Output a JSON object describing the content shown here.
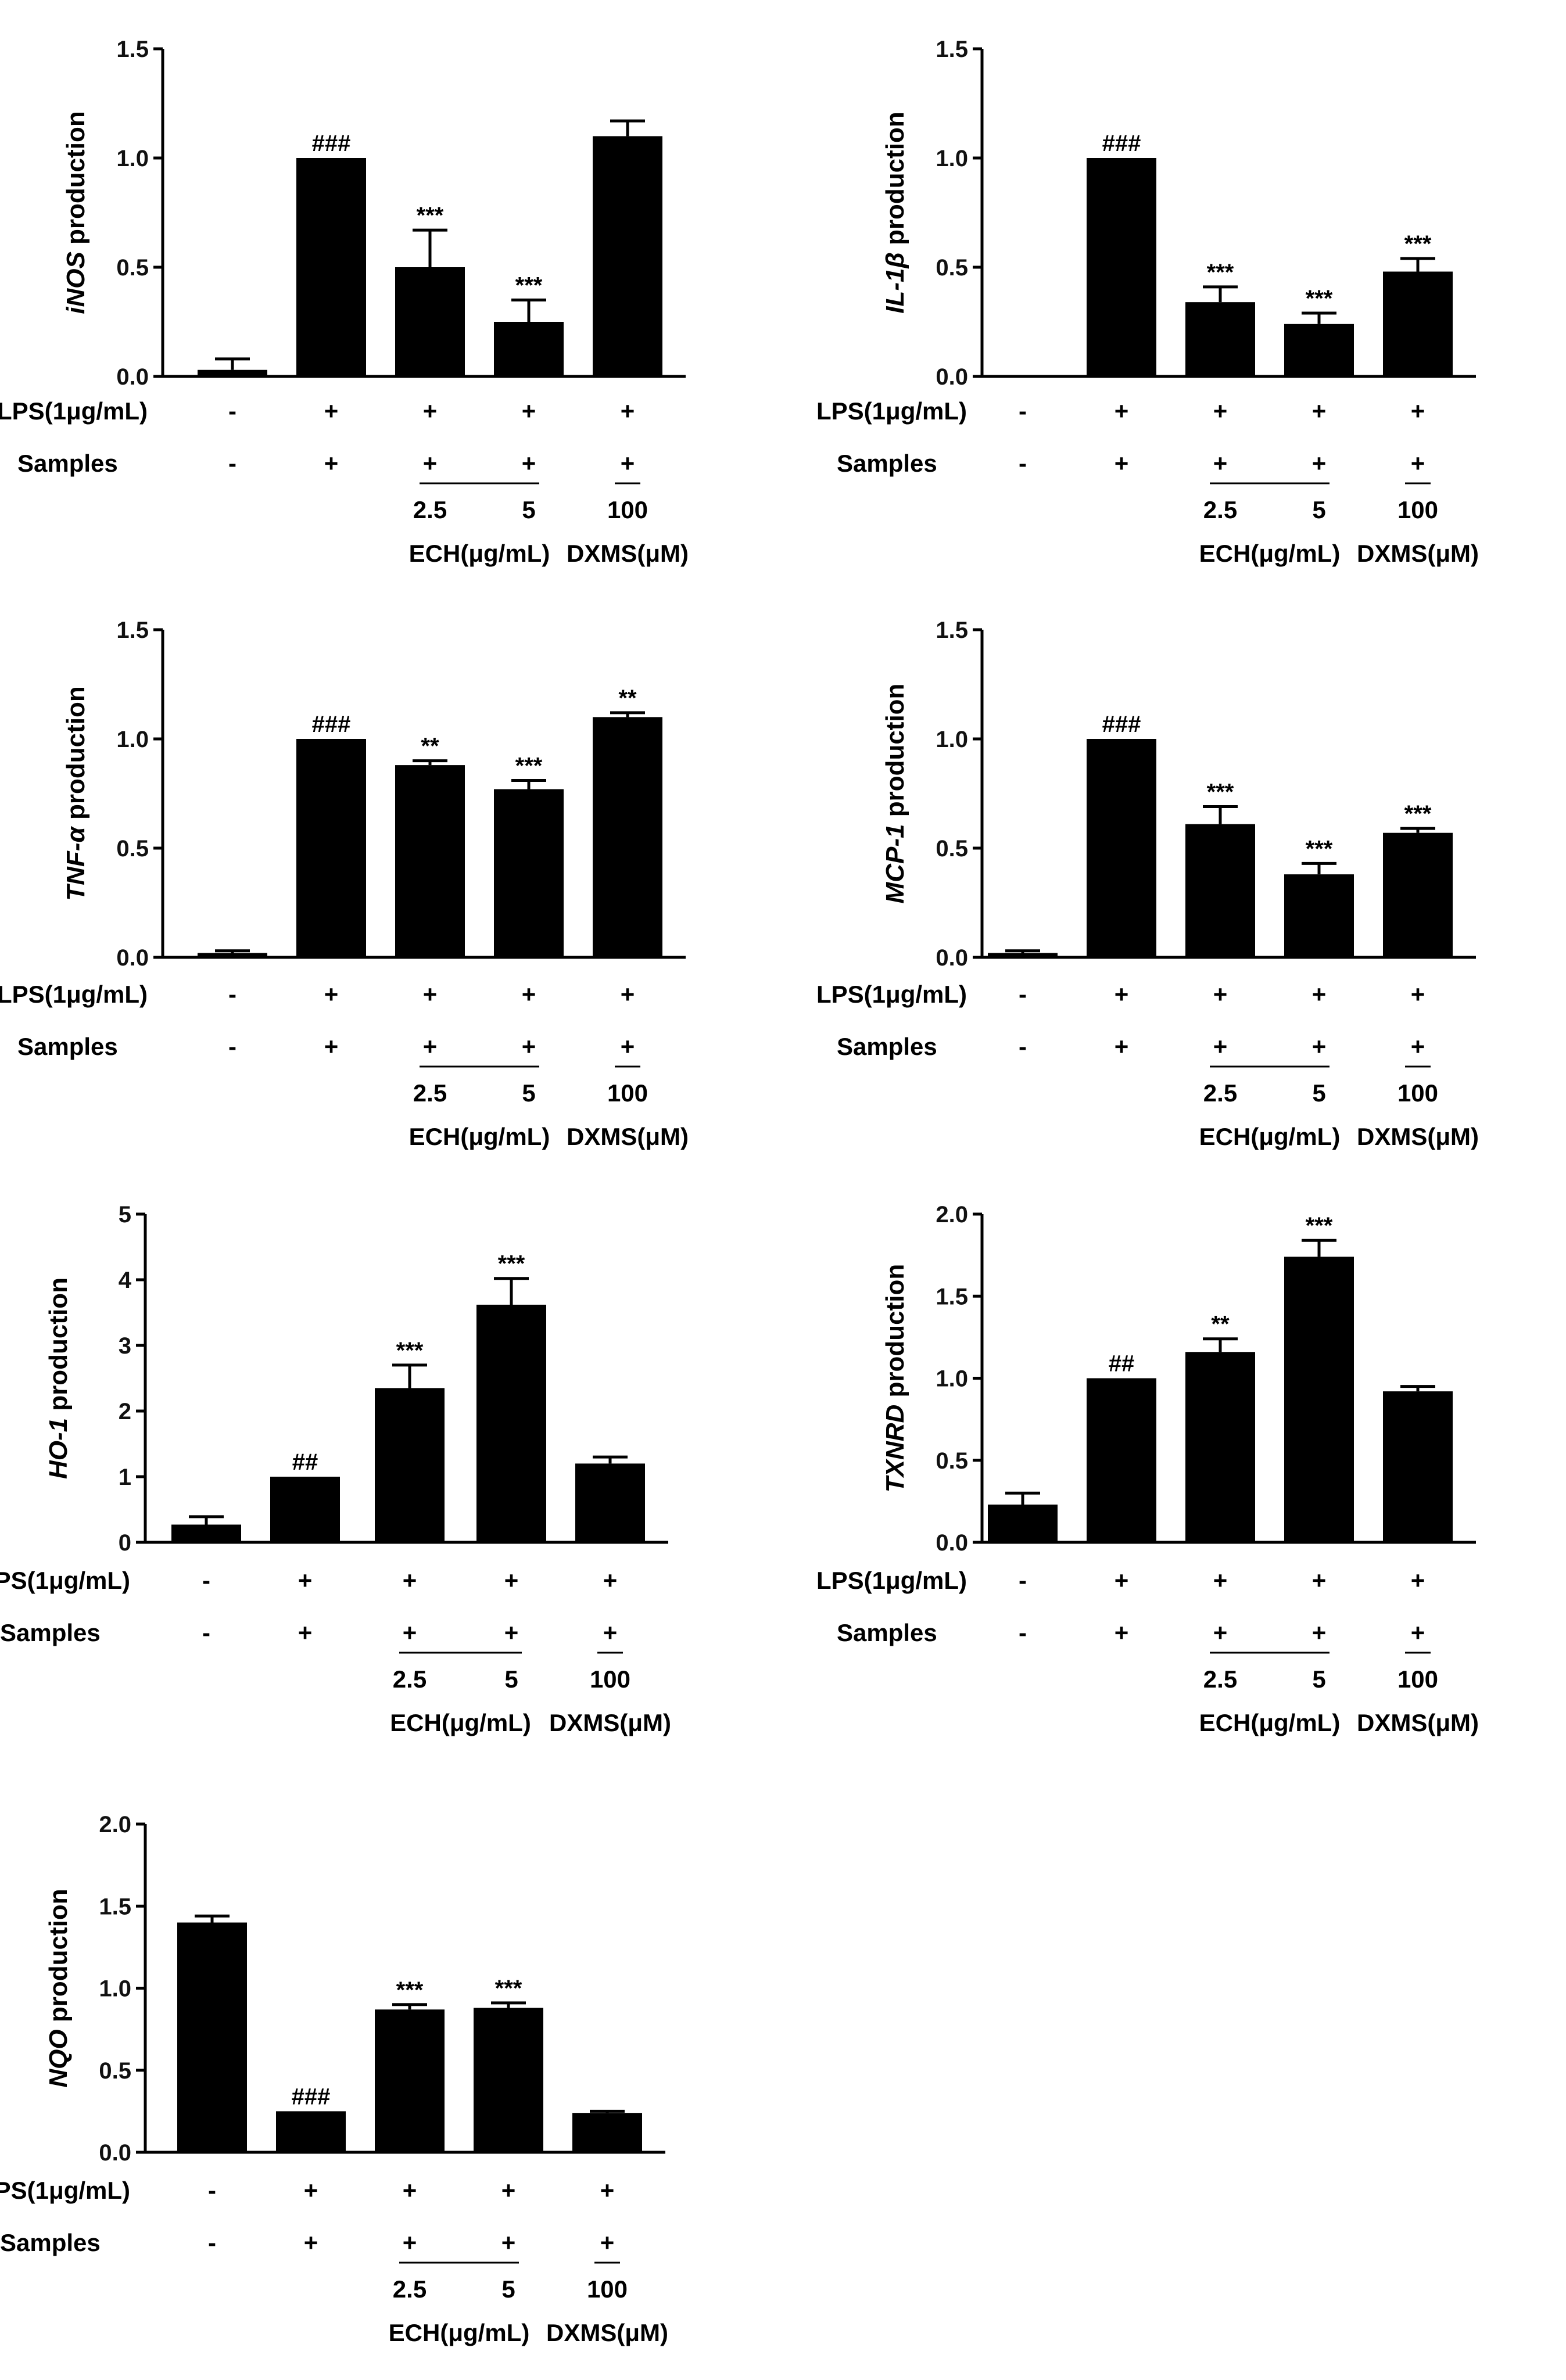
{
  "shared": {
    "row_labels": [
      "LPS(1μg/mL)",
      "Samples"
    ],
    "lps_signs": [
      "-",
      "+",
      "+",
      "+",
      "+"
    ],
    "sample_signs": [
      "-",
      "+",
      "+",
      "+",
      "+"
    ],
    "doses": [
      "2.5",
      "5",
      "100"
    ],
    "group_labels": [
      "ECH(μg/mL)",
      "DXMS(μM)"
    ]
  },
  "chart_data": [
    {
      "type": "bar",
      "gene": "iNOS",
      "ylabel_suffix": "production",
      "categories": [
        "Control",
        "LPS",
        "LPS+ECH 2.5",
        "LPS+ECH 5",
        "LPS+DXMS 100"
      ],
      "values": [
        0.03,
        1.0,
        0.5,
        0.25,
        1.1
      ],
      "errors": [
        0.05,
        0.0,
        0.17,
        0.1,
        0.07
      ],
      "significance": [
        "",
        "###",
        "***",
        "***",
        ""
      ],
      "ylim": [
        0,
        1.5
      ],
      "yticks": [
        "0.0",
        "0.5",
        "1.0",
        "1.5"
      ]
    },
    {
      "type": "bar",
      "gene": "IL-1β",
      "ylabel_suffix": "production",
      "categories": [
        "Control",
        "LPS",
        "LPS+ECH 2.5",
        "LPS+ECH 5",
        "LPS+DXMS 100"
      ],
      "values": [
        0.0,
        1.0,
        0.34,
        0.24,
        0.48
      ],
      "errors": [
        0.0,
        0.0,
        0.07,
        0.05,
        0.06
      ],
      "significance": [
        "",
        "###",
        "***",
        "***",
        "***"
      ],
      "ylim": [
        0,
        1.5
      ],
      "yticks": [
        "0.0",
        "0.5",
        "1.0",
        "1.5"
      ]
    },
    {
      "type": "bar",
      "gene": "TNF-α",
      "ylabel_suffix": "production",
      "categories": [
        "Control",
        "LPS",
        "LPS+ECH 2.5",
        "LPS+ECH 5",
        "LPS+DXMS 100"
      ],
      "values": [
        0.02,
        1.0,
        0.88,
        0.77,
        1.1
      ],
      "errors": [
        0.01,
        0.0,
        0.02,
        0.04,
        0.02
      ],
      "significance": [
        "",
        "###",
        "**",
        "***",
        "**"
      ],
      "ylim": [
        0,
        1.5
      ],
      "yticks": [
        "0.0",
        "0.5",
        "1.0",
        "1.5"
      ]
    },
    {
      "type": "bar",
      "gene": "MCP-1",
      "ylabel_suffix": "production",
      "categories": [
        "Control",
        "LPS",
        "LPS+ECH 2.5",
        "LPS+ECH 5",
        "LPS+DXMS 100"
      ],
      "values": [
        0.02,
        1.0,
        0.61,
        0.38,
        0.57
      ],
      "errors": [
        0.01,
        0.0,
        0.08,
        0.05,
        0.02
      ],
      "significance": [
        "",
        "###",
        "***",
        "***",
        "***"
      ],
      "ylim": [
        0,
        1.5
      ],
      "yticks": [
        "0.0",
        "0.5",
        "1.0",
        "1.5"
      ]
    },
    {
      "type": "bar",
      "gene": "HO-1",
      "ylabel_suffix": "production",
      "categories": [
        "Control",
        "LPS",
        "LPS+ECH 2.5",
        "LPS+ECH 5",
        "LPS+DXMS 100"
      ],
      "values": [
        0.27,
        1.0,
        2.35,
        3.62,
        1.2
      ],
      "errors": [
        0.12,
        0.0,
        0.35,
        0.4,
        0.1
      ],
      "significance": [
        "",
        "##",
        "***",
        "***",
        ""
      ],
      "ylim": [
        0,
        5
      ],
      "yticks": [
        "0",
        "1",
        "2",
        "3",
        "4",
        "5"
      ]
    },
    {
      "type": "bar",
      "gene": "TXNRD",
      "ylabel_suffix": "production",
      "categories": [
        "Control",
        "LPS",
        "LPS+ECH 2.5",
        "LPS+ECH 5",
        "LPS+DXMS 100"
      ],
      "values": [
        0.23,
        1.0,
        1.16,
        1.74,
        0.92
      ],
      "errors": [
        0.07,
        0.0,
        0.08,
        0.1,
        0.03
      ],
      "significance": [
        "",
        "##",
        "**",
        "***",
        ""
      ],
      "ylim": [
        0,
        2.0
      ],
      "yticks": [
        "0.0",
        "0.5",
        "1.0",
        "1.5",
        "2.0"
      ]
    },
    {
      "type": "bar",
      "gene": "NQO",
      "ylabel_suffix": "production",
      "categories": [
        "Control",
        "LPS",
        "LPS+ECH 2.5",
        "LPS+ECH 5",
        "LPS+DXMS 100"
      ],
      "values": [
        1.4,
        0.25,
        0.87,
        0.88,
        0.24
      ],
      "errors": [
        0.04,
        0.0,
        0.03,
        0.03,
        0.01
      ],
      "significance": [
        "",
        "###",
        "***",
        "***",
        ""
      ],
      "ylim": [
        0,
        2.0
      ],
      "yticks": [
        "0.0",
        "0.5",
        "1.0",
        "1.5",
        "2.0"
      ]
    }
  ]
}
